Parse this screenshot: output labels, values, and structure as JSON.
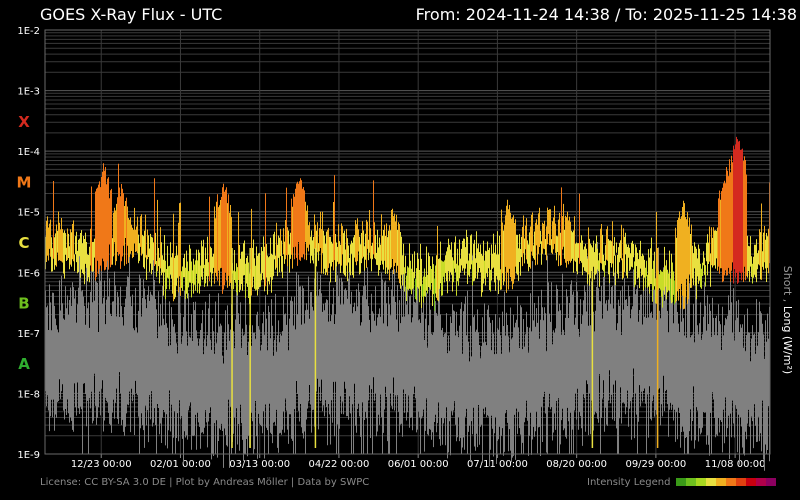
{
  "chart_data": {
    "type": "line",
    "title": "GOES X-Ray Flux - UTC",
    "range_text": "From: 2024-11-24 14:38  /  To: 2025-11-25 14:38",
    "ylabel_short": "Short",
    "ylabel_sep": " , ",
    "ylabel_long": "Long (W/m²)",
    "ylim": [
      "1E-9",
      "1E-2"
    ],
    "scale": "log",
    "grid": true,
    "y_ticks": [
      "1E-2",
      "1E-3",
      "1E-4",
      "1E-5",
      "1E-6",
      "1E-7",
      "1E-8",
      "1E-9"
    ],
    "x_ticks": [
      "12/23 00:00",
      "02/01 00:00",
      "03/13 00:00",
      "04/22 00:00",
      "06/01 00:00",
      "07/11 00:00",
      "08/20 00:00",
      "09/29 00:00",
      "11/08 00:00"
    ],
    "x_range": [
      "2024-11-24 14:38",
      "2025-11-25 14:38"
    ],
    "classes": [
      {
        "label": "X",
        "color": "#d42a1f"
      },
      {
        "label": "M",
        "color": "#f07818"
      },
      {
        "label": "C",
        "color": "#e8e040"
      },
      {
        "label": "B",
        "color": "#6ec01e"
      },
      {
        "label": "A",
        "color": "#2fae2f"
      }
    ],
    "series": [
      {
        "name": "Short",
        "color": "#808080",
        "typical_range": [
          "1E-8",
          "1E-7"
        ]
      },
      {
        "name": "Long",
        "color_scale": "intensity",
        "typical_range": [
          "1E-6",
          "1E-5"
        ],
        "peak": "1.6E-4"
      }
    ],
    "legend_label": "Intensity Legend",
    "legend_colors": [
      "#3a9a18",
      "#6ec01e",
      "#a8d820",
      "#e8e040",
      "#f0b020",
      "#f07818",
      "#e04010",
      "#c80010",
      "#b0004a",
      "#8c0060"
    ]
  },
  "footer": {
    "license": "License: CC BY-SA 3.0 DE | Plot by Andreas Möller | Data by SWPC"
  }
}
